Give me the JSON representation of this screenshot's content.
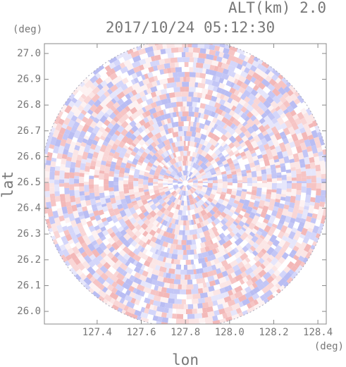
{
  "chart_data": {
    "type": "radar-field",
    "title": "2017/10/24 05:12:30",
    "subtitle": "ALT(km) 2.0",
    "xlabel": "lon",
    "ylabel": "lat",
    "xunit": "(deg)",
    "yunit": "(deg)",
    "xlim": [
      127.161,
      128.438
    ],
    "ylim": [
      25.951,
      27.038
    ],
    "xticks": [
      127.4,
      127.6,
      127.8,
      {
        "value": 128,
        "label": "128.0"
      },
      128.2,
      128.4
    ],
    "yticks": [
      {
        "value": 26,
        "label": "26.0"
      },
      26.1,
      26.2,
      26.3,
      26.4,
      26.5,
      26.6,
      26.7,
      26.8,
      26.9,
      {
        "value": 27,
        "label": "27.0"
      }
    ]
  }
}
